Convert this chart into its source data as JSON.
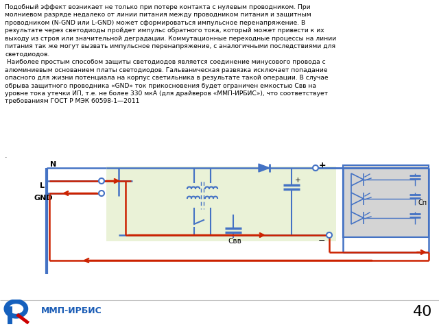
{
  "title_text": "Подобный эффект возникает не только при потере контакта с нулевым проводником. При\nмолниевом разряде недалеко от линии питания между проводником питания и защитным\nпроводником (N-GND или L-GND) может сформироваться импульсное перенапряжение. В\nрезультате через светодиоды пройдет импульс обратного тока, который может привести к их\nвыходу из строя или значительной деградации. Коммутационные переходные процессы на линии\nпитания так же могут вызвать импульсное перенапряжение, с аналогичными последствиями для\nсветодиодов.\n Наиболее простым способом защиты светодиодов является соединение минусового провода с\nалюминиевым основанием платы светодиодов. Гальваническая развязка исключает попадание\nопасного для жизни потенциала на корпус светильника в результате такой операции. В случае\nобрыва защитного проводника «GND» ток прикосновения будет ограничен емкостью Свв на\nуровне тока утечки ИП, т.е. не более 330 мкА (для драйверов «ММП-ИРБИС»), что соответствует\nтребованиям ГОСТ Р МЭК 60598-1—2011",
  "bg_color": "#ffffff",
  "text_color": "#000000",
  "blue_color": "#4472c4",
  "red_color": "#cc2200",
  "green_bg": "#eaf2d7",
  "gray_bg": "#d4d4d4",
  "page_number": "40",
  "company_name": "ММП-ИРБИС",
  "N_label": "N",
  "L_label": "L",
  "GND_label": "GND",
  "plus_label": "+",
  "minus_label": "−",
  "cvv_label": "Свв",
  "cn_label": "Сп",
  "plus_small": "+"
}
